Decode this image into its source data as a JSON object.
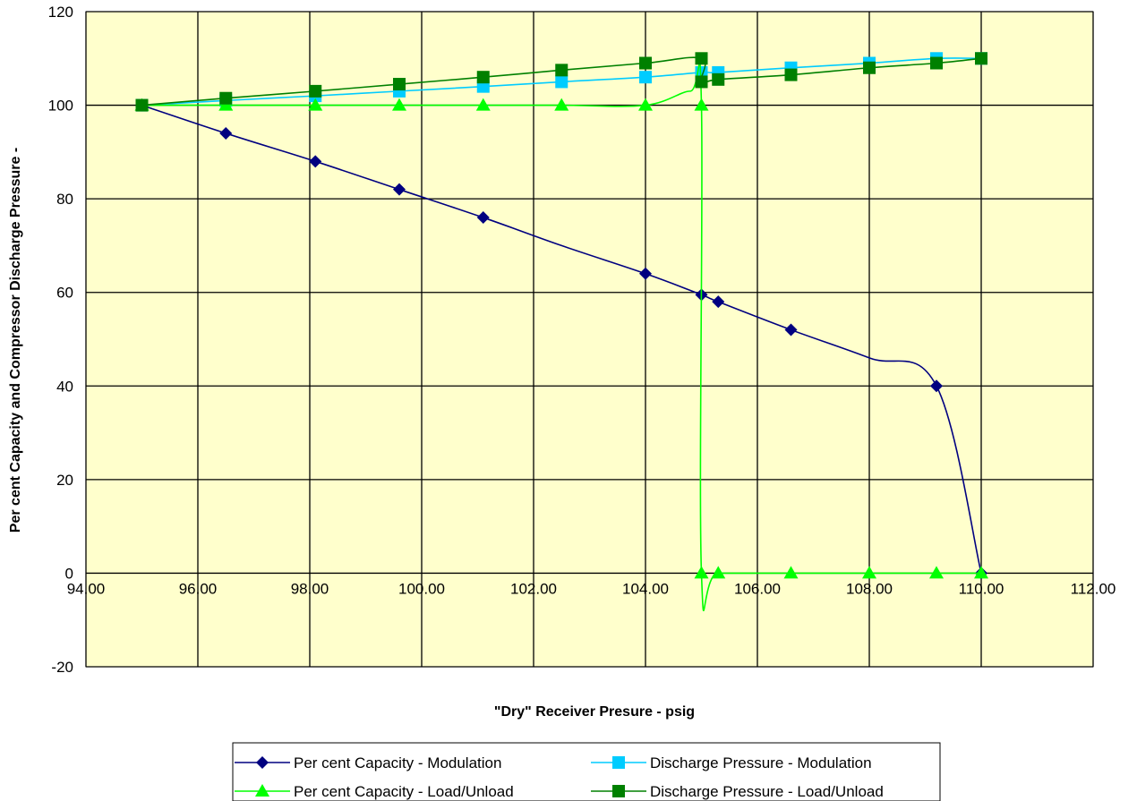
{
  "chart_data": {
    "type": "line",
    "title": "",
    "xlabel": "\"Dry\" Receiver Presure - psig",
    "ylabel": "Per cent Capacity and Compressor Discharge Pressure -",
    "xlim": [
      94,
      112
    ],
    "ylim": [
      -20,
      120
    ],
    "x_ticks": [
      "94.00",
      "96.00",
      "98.00",
      "100.00",
      "102.00",
      "104.00",
      "106.00",
      "108.00",
      "110.00",
      "112.00"
    ],
    "y_ticks": [
      "-20",
      "0",
      "20",
      "40",
      "60",
      "80",
      "100",
      "120"
    ],
    "grid": true,
    "plot_background": "#FFFFCC",
    "legend_position": "bottom",
    "series": [
      {
        "name": "Per cent Capacity - Modulation",
        "color": "#000080",
        "marker": "diamond",
        "points": [
          [
            95.0,
            100
          ],
          [
            96.5,
            94
          ],
          [
            98.1,
            88
          ],
          [
            99.6,
            82
          ],
          [
            101.1,
            76
          ],
          [
            102.5,
            70
          ],
          [
            104.0,
            64
          ],
          [
            105.0,
            59.5
          ],
          [
            105.3,
            58
          ],
          [
            106.6,
            52
          ],
          [
            108.0,
            46
          ],
          [
            109.2,
            40
          ],
          [
            110.0,
            0
          ]
        ],
        "marker_points": [
          [
            95.0,
            100
          ],
          [
            96.5,
            94
          ],
          [
            98.1,
            88
          ],
          [
            99.6,
            82
          ],
          [
            101.1,
            76
          ],
          [
            104.0,
            64
          ],
          [
            105.0,
            59.5
          ],
          [
            105.3,
            58
          ],
          [
            106.6,
            52
          ],
          [
            109.2,
            40
          ],
          [
            110.0,
            0
          ]
        ]
      },
      {
        "name": "Discharge Pressure - Modulation",
        "color": "#00CCFF",
        "marker": "square",
        "points": [
          [
            95.0,
            100
          ],
          [
            96.5,
            101
          ],
          [
            98.1,
            102
          ],
          [
            99.6,
            103
          ],
          [
            101.1,
            104
          ],
          [
            102.5,
            105
          ],
          [
            104.0,
            106
          ],
          [
            105.0,
            107
          ],
          [
            105.3,
            107
          ],
          [
            106.6,
            108
          ],
          [
            108.0,
            109
          ],
          [
            109.2,
            110
          ],
          [
            110.0,
            110
          ]
        ],
        "marker_points": [
          [
            95.0,
            100
          ],
          [
            96.5,
            101
          ],
          [
            98.1,
            102
          ],
          [
            99.6,
            103
          ],
          [
            101.1,
            104
          ],
          [
            102.5,
            105
          ],
          [
            104.0,
            106
          ],
          [
            105.0,
            107
          ],
          [
            105.3,
            107
          ],
          [
            106.6,
            108
          ],
          [
            108.0,
            109
          ],
          [
            109.2,
            110
          ],
          [
            110.0,
            110
          ]
        ]
      },
      {
        "name": "Per cent Capacity - Load/Unload",
        "color": "#00FF00",
        "marker": "triangle",
        "points": [
          [
            95.0,
            100
          ],
          [
            96.5,
            100
          ],
          [
            98.1,
            100
          ],
          [
            99.6,
            100
          ],
          [
            101.1,
            100
          ],
          [
            102.5,
            100
          ],
          [
            104.0,
            100
          ],
          [
            104.8,
            103
          ],
          [
            105.0,
            100
          ],
          [
            105.0,
            0
          ],
          [
            105.3,
            0
          ],
          [
            106.6,
            0
          ],
          [
            108.0,
            0
          ],
          [
            109.2,
            0
          ],
          [
            110.0,
            0
          ]
        ],
        "marker_points": [
          [
            95.0,
            100
          ],
          [
            96.5,
            100
          ],
          [
            98.1,
            100
          ],
          [
            99.6,
            100
          ],
          [
            101.1,
            100
          ],
          [
            102.5,
            100
          ],
          [
            104.0,
            100
          ],
          [
            105.0,
            100
          ],
          [
            105.0,
            0
          ],
          [
            105.3,
            0
          ],
          [
            106.6,
            0
          ],
          [
            108.0,
            0
          ],
          [
            109.2,
            0
          ],
          [
            110.0,
            0
          ]
        ]
      },
      {
        "name": "Discharge Pressure - Load/Unload",
        "color": "#008000",
        "marker": "square",
        "points": [
          [
            95.0,
            100
          ],
          [
            96.5,
            101.5
          ],
          [
            98.1,
            103
          ],
          [
            99.6,
            104.5
          ],
          [
            101.1,
            106
          ],
          [
            102.5,
            107.5
          ],
          [
            104.0,
            109
          ],
          [
            105.0,
            110
          ],
          [
            105.0,
            105
          ],
          [
            105.3,
            105.5
          ],
          [
            106.6,
            106.5
          ],
          [
            108.0,
            108
          ],
          [
            109.2,
            109
          ],
          [
            110.0,
            110
          ]
        ],
        "marker_points": [
          [
            95.0,
            100
          ],
          [
            96.5,
            101.5
          ],
          [
            98.1,
            103
          ],
          [
            99.6,
            104.5
          ],
          [
            101.1,
            106
          ],
          [
            102.5,
            107.5
          ],
          [
            104.0,
            109
          ],
          [
            105.0,
            110
          ],
          [
            105.0,
            105
          ],
          [
            105.3,
            105.5
          ],
          [
            106.6,
            106.5
          ],
          [
            108.0,
            108
          ],
          [
            109.2,
            109
          ],
          [
            110.0,
            110
          ]
        ]
      }
    ]
  }
}
